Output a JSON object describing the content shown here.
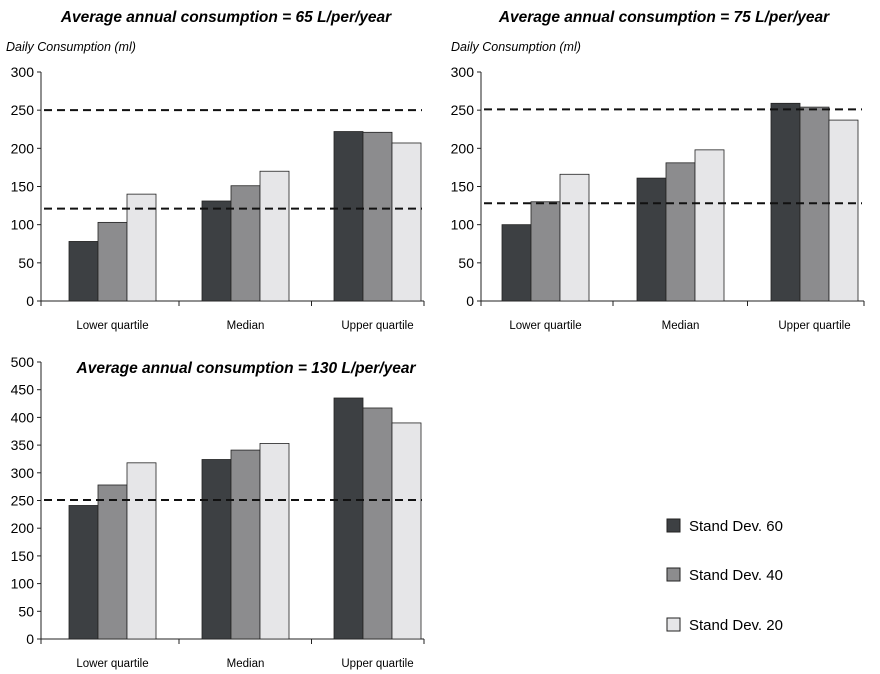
{
  "chart_data": [
    {
      "type": "bar",
      "title": "Average annual consumption = 65 L/per/year",
      "ylabel": "Daily Consumption (ml)",
      "ylim": [
        0,
        300
      ],
      "yticks": [
        "0",
        "50",
        "100",
        "150",
        "200",
        "250",
        "300"
      ],
      "categories": [
        "Lower quartile",
        "Median",
        "Upper quartile"
      ],
      "series": [
        {
          "name": "Stand Dev. 60",
          "values": [
            78,
            131,
            222
          ]
        },
        {
          "name": "Stand Dev. 40",
          "values": [
            103,
            151,
            221
          ]
        },
        {
          "name": "Stand Dev. 20",
          "values": [
            140,
            170,
            207
          ]
        }
      ],
      "reference_lines": [
        250,
        121
      ],
      "grid": false
    },
    {
      "type": "bar",
      "title": "Average annual consumption = 75 L/per/year",
      "ylabel": "Daily Consumption (ml)",
      "ylim": [
        0,
        300
      ],
      "yticks": [
        "0",
        "50",
        "100",
        "150",
        "200",
        "250",
        "300"
      ],
      "categories": [
        "Lower quartile",
        "Median",
        "Upper quartile"
      ],
      "series": [
        {
          "name": "Stand Dev. 60",
          "values": [
            100,
            161,
            259
          ]
        },
        {
          "name": "Stand Dev. 40",
          "values": [
            130,
            181,
            254
          ]
        },
        {
          "name": "Stand Dev. 20",
          "values": [
            166,
            198,
            237
          ]
        }
      ],
      "reference_lines": [
        251,
        128
      ],
      "grid": false
    },
    {
      "type": "bar",
      "title": "Average annual consumption = 130 L/per/year",
      "ylabel": "",
      "ylim": [
        0,
        500
      ],
      "yticks": [
        "0",
        "50",
        "100",
        "150",
        "200",
        "250",
        "300",
        "350",
        "400",
        "450",
        "500"
      ],
      "categories": [
        "Lower quartile",
        "Median",
        "Upper quartile"
      ],
      "series": [
        {
          "name": "Stand Dev. 60",
          "values": [
            241,
            324,
            435
          ]
        },
        {
          "name": "Stand Dev. 40",
          "values": [
            278,
            341,
            417
          ]
        },
        {
          "name": "Stand Dev. 20",
          "values": [
            318,
            353,
            390
          ]
        }
      ],
      "reference_lines": [
        251
      ],
      "grid": false
    }
  ],
  "legend": {
    "placement": "bottom-right",
    "items": [
      {
        "label": "Stand Dev. 60",
        "color": "#3d4043"
      },
      {
        "label": "Stand Dev. 40",
        "color": "#8c8c8e"
      },
      {
        "label": "Stand Dev. 20",
        "color": "#e6e6e8"
      }
    ]
  },
  "colors": [
    "#3d4043",
    "#8c8c8e",
    "#e6e6e8"
  ]
}
